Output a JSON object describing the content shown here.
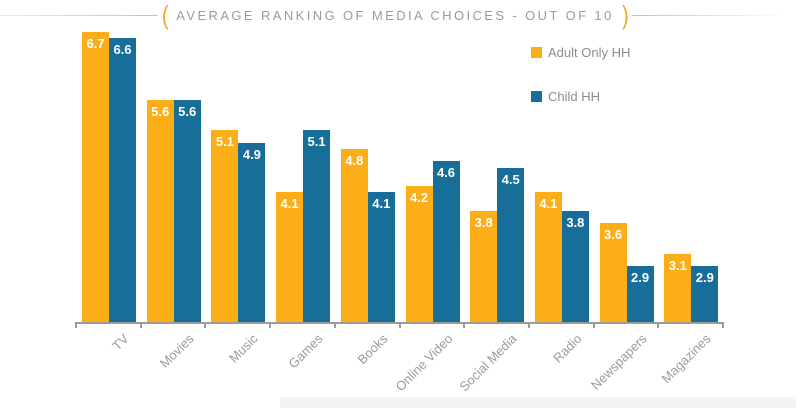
{
  "title": {
    "text": "AVERAGE RANKING OF MEDIA CHOICES - OUT OF 10",
    "left_bracket": "(",
    "right_bracket": ")",
    "accent_color": "#F6A623",
    "text_color": "#9B9B9B"
  },
  "legend": {
    "items": [
      {
        "label": "Adult Only HH",
        "color": "#FBAE17"
      },
      {
        "label": "Child HH",
        "color": "#176E99"
      }
    ]
  },
  "chart_data": {
    "type": "bar",
    "title": "AVERAGE RANKING OF MEDIA CHOICES - OUT OF 10",
    "categories": [
      "TV",
      "Movies",
      "Music",
      "Games",
      "Books",
      "Online Video",
      "Social Media",
      "Radio",
      "Newspapers",
      "Magazines"
    ],
    "series": [
      {
        "name": "Adult Only HH",
        "color": "#FBAE17",
        "values": [
          6.7,
          5.6,
          5.1,
          4.1,
          4.8,
          4.2,
          3.8,
          4.1,
          3.6,
          3.1
        ]
      },
      {
        "name": "Child HH",
        "color": "#176E99",
        "values": [
          6.6,
          5.6,
          4.9,
          5.1,
          4.1,
          4.6,
          4.5,
          3.8,
          2.9,
          2.9
        ]
      }
    ],
    "xlabel": "",
    "ylabel": "",
    "ylim": [
      2,
      7
    ],
    "grid": false,
    "legend_position": "upper-right",
    "value_labels": "inside top of each bar, white bold",
    "axis_color": "#9B9B9B",
    "x_tick_label_rotation": -45
  }
}
